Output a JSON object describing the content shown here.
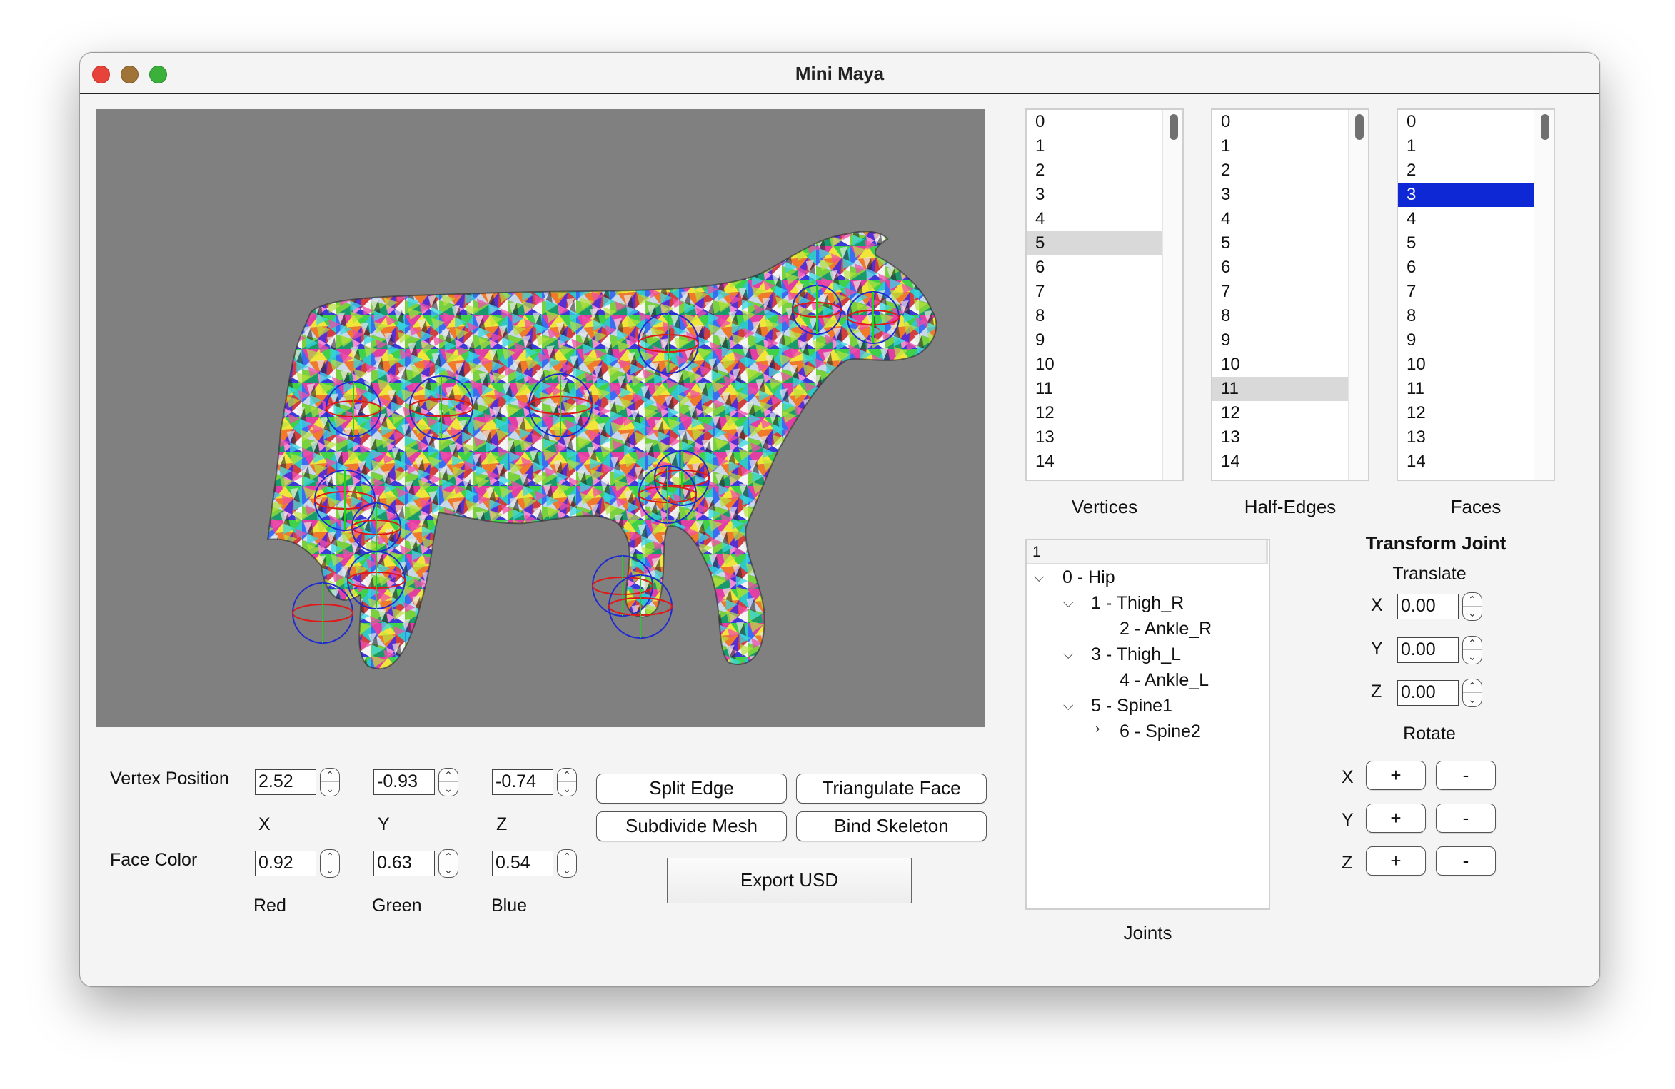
{
  "window": {
    "title": "Mini Maya"
  },
  "lists": {
    "vertices": {
      "caption": "Vertices",
      "items": [
        "0",
        "1",
        "2",
        "3",
        "4",
        "5",
        "6",
        "7",
        "8",
        "9",
        "10",
        "11",
        "12",
        "13",
        "14"
      ],
      "selected": "5"
    },
    "half_edges": {
      "caption": "Half-Edges",
      "items": [
        "0",
        "1",
        "2",
        "3",
        "4",
        "5",
        "6",
        "7",
        "8",
        "9",
        "10",
        "11",
        "12",
        "13",
        "14"
      ],
      "selected": "11"
    },
    "faces": {
      "caption": "Faces",
      "items": [
        "0",
        "1",
        "2",
        "3",
        "4",
        "5",
        "6",
        "7",
        "8",
        "9",
        "10",
        "11",
        "12",
        "13",
        "14"
      ],
      "selected": "3"
    }
  },
  "vertex_position": {
    "label": "Vertex Position",
    "x": "2.52",
    "y": "-0.93",
    "z": "-0.74",
    "x_label": "X",
    "y_label": "Y",
    "z_label": "Z"
  },
  "face_color": {
    "label": "Face Color",
    "red": "0.92",
    "green": "0.63",
    "blue": "0.54",
    "red_label": "Red",
    "green_label": "Green",
    "blue_label": "Blue"
  },
  "buttons": {
    "split_edge": "Split Edge",
    "triangulate_face": "Triangulate Face",
    "subdivide_mesh": "Subdivide Mesh",
    "bind_skeleton": "Bind Skeleton",
    "export_usd": "Export USD"
  },
  "joints": {
    "header": "1",
    "caption": "Joints",
    "nodes": [
      "0 - Hip",
      "1 - Thigh_R",
      "2 - Ankle_R",
      "3 - Thigh_L",
      "4 - Ankle_L",
      "5 - Spine1",
      "6 - Spine2"
    ]
  },
  "transform_joint": {
    "title": "Transform Joint",
    "translate_label": "Translate",
    "x_label": "X",
    "y_label": "Y",
    "z_label": "Z",
    "tx": "0.00",
    "ty": "0.00",
    "tz": "0.00",
    "rotate_label": "Rotate",
    "plus": "+",
    "minus": "-"
  },
  "colors": {
    "viewport_bg": "#808080",
    "selection_blue": "#0f28d6",
    "selection_gray": "#d9d9d9",
    "joint_circle": "#1f2bd0",
    "joint_ring": "#e01818"
  },
  "icons": [
    "chevron-down-icon",
    "chevron-right-icon",
    "spin-up-icon",
    "spin-down-icon"
  ]
}
